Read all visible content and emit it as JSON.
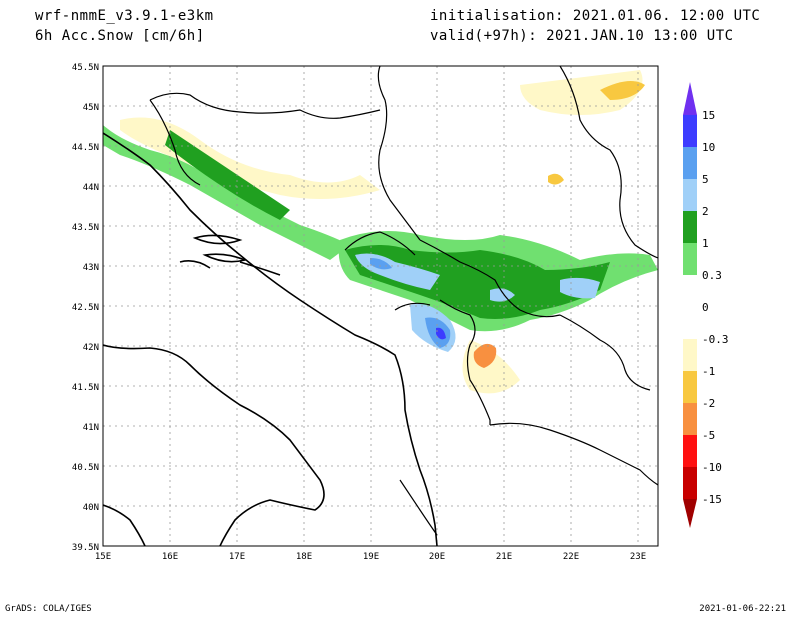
{
  "header": {
    "model": "wrf-nmmE_v3.9.1-e3km",
    "field": "6h Acc.Snow [cm/6h]",
    "init": "initialisation: 2021.01.06.  12:00 UTC",
    "valid": "valid(+97h): 2021.JAN.10 13:00 UTC"
  },
  "axes": {
    "lat_labels": [
      "45.5N",
      "45N",
      "44.5N",
      "44N",
      "43.5N",
      "43N",
      "42.5N",
      "42N",
      "41.5N",
      "41N",
      "40.5N",
      "40N",
      "39.5N"
    ],
    "lon_labels": [
      "15E",
      "16E",
      "17E",
      "18E",
      "19E",
      "20E",
      "21E",
      "22E",
      "23E"
    ]
  },
  "colorbar": {
    "labels": [
      "15",
      "10",
      "5",
      "2",
      "1",
      "0.3",
      "0",
      "-0.3",
      "-1",
      "-2",
      "-5",
      "-10",
      "-15"
    ],
    "colors": [
      "#7030f0",
      "#3c3cff",
      "#5aa0f0",
      "#a0d0f8",
      "#20a020",
      "#70e070",
      "#ffffff",
      "#fff8c8",
      "#f8c840",
      "#f89040",
      "#ff1010",
      "#c80000",
      "#a00000"
    ]
  },
  "footer": {
    "left": "GrADS: COLA/IGES",
    "right": "2021-01-06-22:21"
  }
}
